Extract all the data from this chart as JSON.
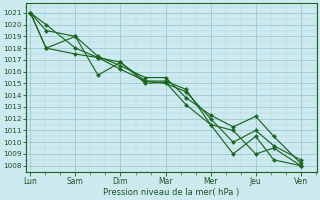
{
  "x_labels": [
    "Lun",
    "Sam",
    "Dim",
    "Mar",
    "Mer",
    "Jeu",
    "Ven"
  ],
  "line1_x": [
    0,
    0.35,
    1.0,
    1.5,
    2.0,
    2.55,
    3.0,
    3.45,
    4.0,
    4.5,
    5.0,
    5.4,
    6.0
  ],
  "line1_y": [
    1021.0,
    1020.0,
    1018.0,
    1017.2,
    1016.8,
    1015.0,
    1015.1,
    1013.2,
    1011.5,
    1011.0,
    1009.0,
    1009.5,
    1008.0
  ],
  "line2_x": [
    0,
    0.35,
    1.0,
    1.5,
    2.0,
    2.55,
    3.0,
    3.45,
    4.0,
    4.5,
    5.0,
    5.4,
    6.0
  ],
  "line2_y": [
    1021.0,
    1019.5,
    1019.0,
    1017.3,
    1016.5,
    1015.5,
    1015.5,
    1013.8,
    1012.3,
    1011.3,
    1012.2,
    1010.5,
    1008.2
  ],
  "line3_x": [
    0,
    0.35,
    1.0,
    1.5,
    2.0,
    2.55,
    3.0,
    3.45,
    4.0,
    4.5,
    5.0,
    5.4,
    6.0
  ],
  "line3_y": [
    1021.0,
    1018.0,
    1019.0,
    1015.7,
    1016.8,
    1015.2,
    1015.2,
    1014.5,
    1011.5,
    1009.0,
    1010.5,
    1008.5,
    1008.0
  ],
  "line4_x": [
    0,
    0.35,
    1.0,
    1.5,
    2.0,
    2.55,
    3.0,
    3.45,
    4.0,
    4.5,
    5.0,
    5.4,
    6.0
  ],
  "line4_y": [
    1021.0,
    1018.0,
    1017.5,
    1017.2,
    1016.2,
    1015.2,
    1015.0,
    1014.3,
    1012.0,
    1010.0,
    1011.0,
    1009.7,
    1008.5
  ],
  "ylim": [
    1007.5,
    1021.8
  ],
  "yticks": [
    1008,
    1009,
    1010,
    1011,
    1012,
    1013,
    1014,
    1015,
    1016,
    1017,
    1018,
    1019,
    1020,
    1021
  ],
  "line_color": "#1a6620",
  "bg_color": "#cdeaf0",
  "grid_major_color": "#9dc8d0",
  "grid_minor_color": "#b8d8e0",
  "xlabel": "Pression niveau de la mer( hPa )",
  "tick_color": "#1a5520",
  "xlabel_fontsize": 6.0,
  "ytick_fontsize": 5.2,
  "xtick_fontsize": 5.5
}
